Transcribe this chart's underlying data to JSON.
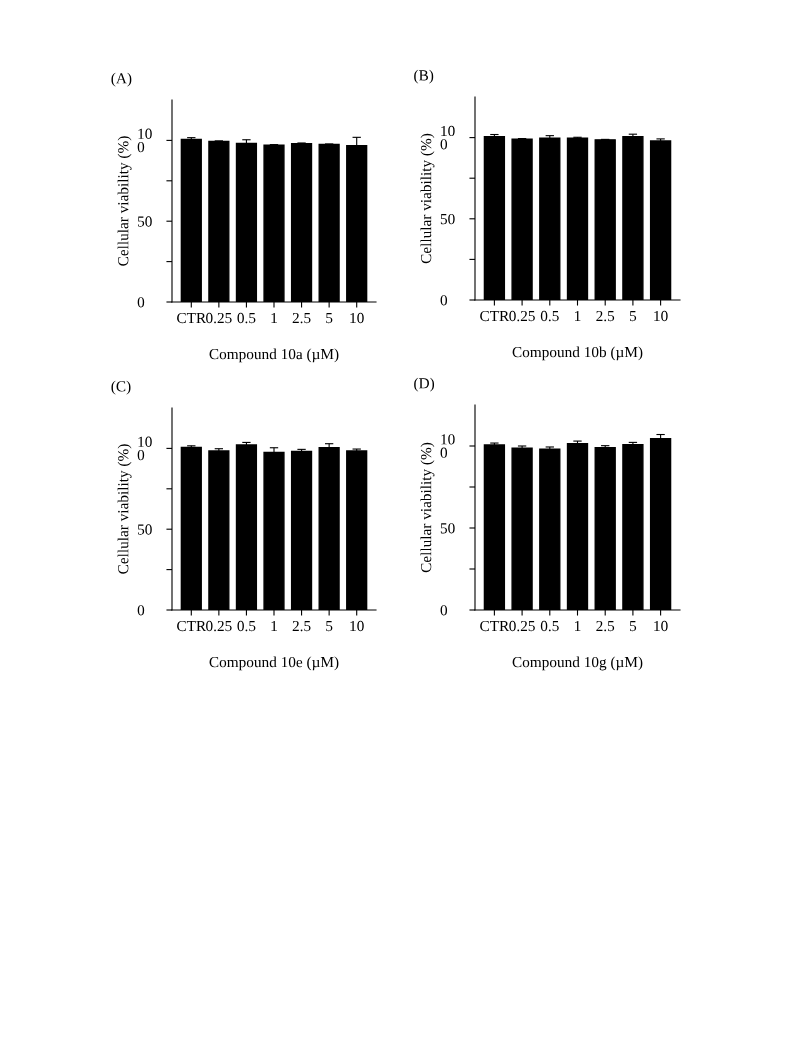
{
  "chart_data": [
    {
      "type": "bar",
      "title": "(A)",
      "xlabel": "Compound 10a (µM)",
      "ylabel": "Cellular viability (%)",
      "categories": [
        "CTR",
        "0.25",
        "0.5",
        "1",
        "2.5",
        "5",
        "10"
      ],
      "color": "#000000",
      "values": [
        100.6,
        99.4,
        98.1,
        97.1,
        97.9,
        97.5,
        96.7
      ],
      "errors": [
        1.1,
        0.3,
        2.3,
        0.3,
        0.5,
        0.3,
        5.2
      ],
      "ylim": [
        0,
        125
      ],
      "yticks": [
        0,
        {
          "value": 25,
          "label": null
        },
        50,
        {
          "value": 75,
          "label": null
        },
        {
          "value": 100,
          "label": "10\n0"
        }
      ]
    },
    {
      "type": "bar",
      "title": "(B)",
      "xlabel": "Compound 10b (µM)",
      "ylabel": "Cellular viability (%)",
      "categories": [
        "CTR",
        "0.25",
        "0.5",
        "1",
        "2.5",
        "5",
        "10"
      ],
      "color": "#000000",
      "values": [
        100.6,
        99.0,
        99.6,
        99.6,
        98.6,
        100.6,
        97.9
      ],
      "errors": [
        1.3,
        0.4,
        1.6,
        0.6,
        0.3,
        1.5,
        1.3
      ],
      "ylim": [
        0,
        125
      ],
      "yticks": [
        0,
        {
          "value": 25,
          "label": null
        },
        50,
        {
          "value": 75,
          "label": null
        },
        {
          "value": 100,
          "label": "10\n0"
        }
      ]
    },
    {
      "type": "bar",
      "title": "(C)",
      "xlabel": "Compound 10e (µM)",
      "ylabel": "Cellular viability (%)",
      "categories": [
        "CTR",
        "0.25",
        "0.5",
        "1",
        "2.5",
        "5",
        "10"
      ],
      "color": "#000000",
      "values": [
        100.6,
        98.4,
        102.1,
        97.5,
        98.1,
        100.4,
        98.4
      ],
      "errors": [
        1.0,
        1.4,
        1.6,
        2.9,
        1.3,
        2.5,
        1.2
      ],
      "ylim": [
        0,
        125
      ],
      "yticks": [
        0,
        {
          "value": 25,
          "label": null
        },
        50,
        {
          "value": 75,
          "label": null
        },
        {
          "value": 100,
          "label": "10\n0"
        }
      ]
    },
    {
      "type": "bar",
      "title": "(D)",
      "xlabel": "Compound 10g (µM)",
      "ylabel": "Cellular viability (%)",
      "categories": [
        "CTR",
        "0.25",
        "0.5",
        "1",
        "2.5",
        "5",
        "10"
      ],
      "color": "#000000",
      "values": [
        100.6,
        98.6,
        98.0,
        101.4,
        99.0,
        100.8,
        104.5
      ],
      "errors": [
        1.2,
        1.4,
        1.4,
        1.6,
        1.2,
        1.4,
        2.5
      ],
      "ylim": [
        0,
        125
      ],
      "yticks": [
        0,
        {
          "value": 25,
          "label": null
        },
        50,
        {
          "value": 75,
          "label": null
        },
        {
          "value": 100,
          "label": "10\n0"
        }
      ]
    }
  ]
}
